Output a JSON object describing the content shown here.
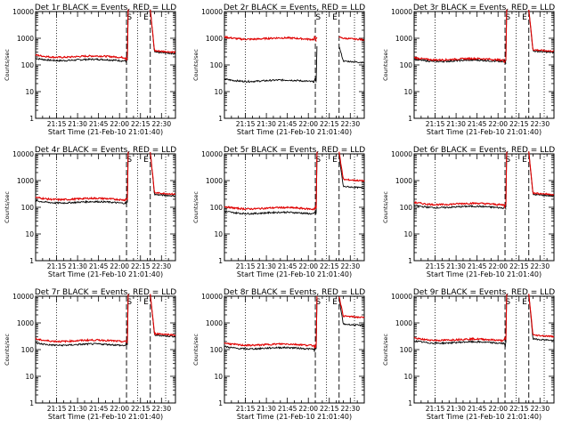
{
  "chart_data": {
    "type": "line",
    "x_tick_labels": [
      "21:15",
      "21:30",
      "21:45",
      "22:00",
      "22:15",
      "22:30"
    ],
    "x_tick_minutes": [
      15,
      30,
      45,
      60,
      75,
      90
    ],
    "x_range_minutes": [
      0,
      100
    ],
    "xlabel": "Start Time (21-Feb-10 21:01:40)",
    "ylabel": "Counts/sec",
    "y_scale": "log",
    "ylim": [
      1,
      10000
    ],
    "y_tick_labels": [
      "1",
      "10",
      "100",
      "1000",
      "10000"
    ],
    "y_tick_values": [
      1,
      10,
      100,
      1000,
      10000
    ],
    "dotted_lines_minutes": [
      15,
      73,
      93
    ],
    "dashed_lines_minutes": [
      65,
      82
    ],
    "markers": [
      {
        "label": "S",
        "x_minutes": 67
      },
      {
        "label": "E",
        "x_minutes": 79
      }
    ],
    "series_colors": {
      "events": "#000000",
      "lld": "#e00000"
    },
    "panels": [
      {
        "title": "Det 1r BLACK = Events, RED = LLD",
        "events_base": 150,
        "lld_base": 200,
        "events_peak": 12000,
        "lld_peak": 12000,
        "events_tail": 300,
        "lld_tail": 340
      },
      {
        "title": "Det 2r BLACK = Events, RED = LLD",
        "events_base": 25,
        "lld_base": 950,
        "events_peak": 500,
        "lld_peak": 1100,
        "events_tail": 140,
        "lld_tail": 1000
      },
      {
        "title": "Det 3r BLACK = Events, RED = LLD",
        "events_base": 140,
        "lld_base": 160,
        "events_peak": 12000,
        "lld_peak": 12000,
        "events_tail": 330,
        "lld_tail": 370
      },
      {
        "title": "Det 4r BLACK = Events, RED = LLD",
        "events_base": 150,
        "lld_base": 200,
        "events_peak": 12000,
        "lld_peak": 12000,
        "events_tail": 300,
        "lld_tail": 350
      },
      {
        "title": "Det 5r BLACK = Events, RED = LLD",
        "events_base": 60,
        "lld_base": 90,
        "events_peak": 8000,
        "lld_peak": 12000,
        "events_tail": 600,
        "lld_tail": 1100
      },
      {
        "title": "Det 6r BLACK = Events, RED = LLD",
        "events_base": 100,
        "lld_base": 130,
        "events_peak": 12000,
        "lld_peak": 12000,
        "events_tail": 300,
        "lld_tail": 340
      },
      {
        "title": "Det 7r BLACK = Events, RED = LLD",
        "events_base": 150,
        "lld_base": 210,
        "events_peak": 12000,
        "lld_peak": 12000,
        "events_tail": 350,
        "lld_tail": 400
      },
      {
        "title": "Det 8r BLACK = Events, RED = LLD",
        "events_base": 110,
        "lld_base": 150,
        "events_peak": 8000,
        "lld_peak": 10000,
        "events_tail": 900,
        "lld_tail": 1800
      },
      {
        "title": "Det 9r BLACK = Events, RED = LLD",
        "events_base": 180,
        "lld_base": 230,
        "events_peak": 12000,
        "lld_peak": 12000,
        "events_tail": 250,
        "lld_tail": 350
      }
    ]
  }
}
